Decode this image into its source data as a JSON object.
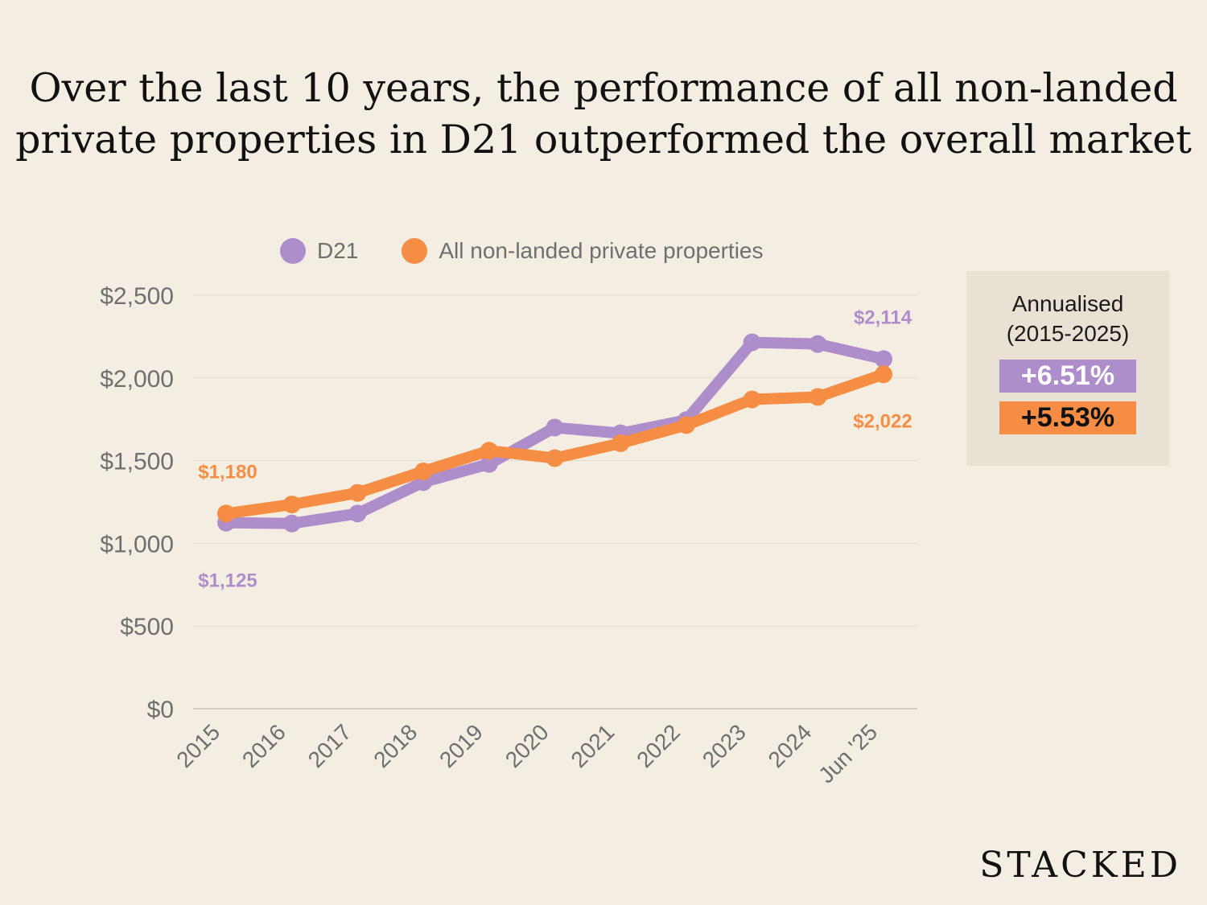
{
  "title_lines": [
    "Over the last 10 years, the performance of all non-landed",
    "private properties in D21 outperformed the overall market"
  ],
  "legend": [
    {
      "label": "D21",
      "color": "#ae8dcb"
    },
    {
      "label": "All non-landed private properties",
      "color": "#f58d45"
    }
  ],
  "annualised": {
    "heading_line1": "Annualised",
    "heading_line2": "(2015-2025)",
    "d21_value": "+6.51%",
    "all_value": "+5.53%"
  },
  "brand": "STACKED",
  "chart_data": {
    "type": "line",
    "categories": [
      "2015",
      "2016",
      "2017",
      "2018",
      "2019",
      "2020",
      "2021",
      "2022",
      "2023",
      "2024",
      "Jun '25"
    ],
    "ylim": [
      0,
      2500
    ],
    "yticks": [
      0,
      500,
      1000,
      1500,
      2000,
      2500
    ],
    "ytick_labels": [
      "$0",
      "$500",
      "$1,000",
      "$1,500",
      "$2,000",
      "$2,500"
    ],
    "grid": true,
    "legend_position": "top",
    "series": [
      {
        "name": "D21",
        "color": "#ae8dcb",
        "values": [
          1125,
          1120,
          1180,
          1370,
          1480,
          1700,
          1665,
          1745,
          2215,
          2205,
          2114
        ],
        "labels": [
          {
            "index": 0,
            "text": "$1,125",
            "placement": "below"
          },
          {
            "index": 10,
            "text": "$2,114",
            "placement": "above"
          }
        ]
      },
      {
        "name": "All non-landed private properties",
        "color": "#f58d45",
        "values": [
          1180,
          1235,
          1305,
          1435,
          1560,
          1515,
          1605,
          1715,
          1870,
          1885,
          2022
        ],
        "labels": [
          {
            "index": 0,
            "text": "$1,180",
            "placement": "above"
          },
          {
            "index": 10,
            "text": "$2,022",
            "placement": "below"
          }
        ]
      }
    ]
  }
}
